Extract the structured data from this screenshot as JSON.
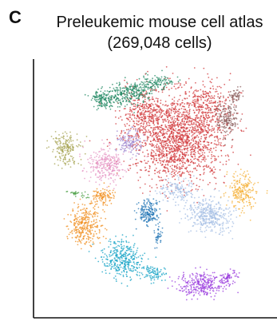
{
  "figure": {
    "panel_letter": "C",
    "title_line1": "Preleukemic mouse cell atlas",
    "title_line2": "(269,048 cells)"
  },
  "chart_data": {
    "type": "scatter",
    "title": "Preleukemic mouse cell atlas (269,048 cells)",
    "xlabel": "",
    "ylabel": "",
    "axes": "left and bottom spines only, no ticks",
    "grid": false,
    "legend": "none",
    "cluster_colors": [
      "#d2393c",
      "#238a64",
      "#8b5f5e",
      "#a8a556",
      "#e695c4",
      "#a08ad0",
      "#f08e1e",
      "#2376b5",
      "#a6bfe4",
      "#f5b33d",
      "#16a3c5",
      "#9a3bde",
      "#4a9f43"
    ]
  }
}
